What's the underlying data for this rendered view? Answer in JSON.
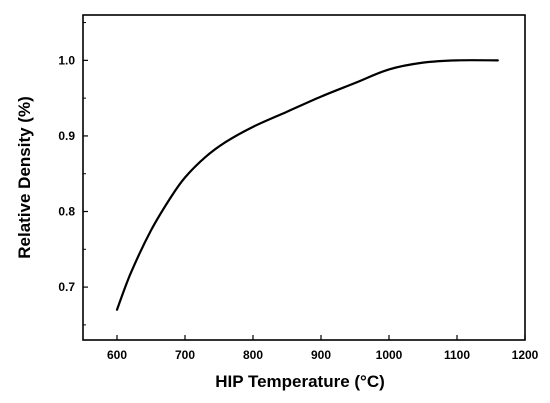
{
  "chart_data": {
    "type": "line",
    "title": "",
    "xlabel": "HIP Temperature (°C)",
    "ylabel": "Relative Density (%)",
    "xlim": [
      550,
      1200
    ],
    "ylim": [
      0.63,
      1.06
    ],
    "x_ticks": [
      600,
      700,
      800,
      900,
      1000,
      1100,
      1200
    ],
    "x_tick_labels": [
      "600",
      "700",
      "800",
      "900",
      "1000",
      "1100",
      "1200"
    ],
    "y_ticks": [
      0.7,
      0.8,
      0.9,
      1.0
    ],
    "y_tick_labels": [
      "0.7",
      "0.8",
      "0.9",
      "1.0"
    ],
    "y_minor_ticks": [
      0.65,
      0.75,
      0.85,
      0.95,
      1.05
    ],
    "grid": false,
    "legend": "none",
    "series": [
      {
        "x": [
          600,
          620,
          650,
          680,
          700,
          730,
          760,
          800,
          850,
          900,
          950,
          1000,
          1050,
          1100,
          1160
        ],
        "y": [
          0.67,
          0.718,
          0.775,
          0.82,
          0.845,
          0.872,
          0.892,
          0.912,
          0.932,
          0.952,
          0.97,
          0.988,
          0.997,
          1.0,
          1.0
        ]
      }
    ],
    "colors": {
      "line": "#000000",
      "axis": "#000000"
    }
  }
}
